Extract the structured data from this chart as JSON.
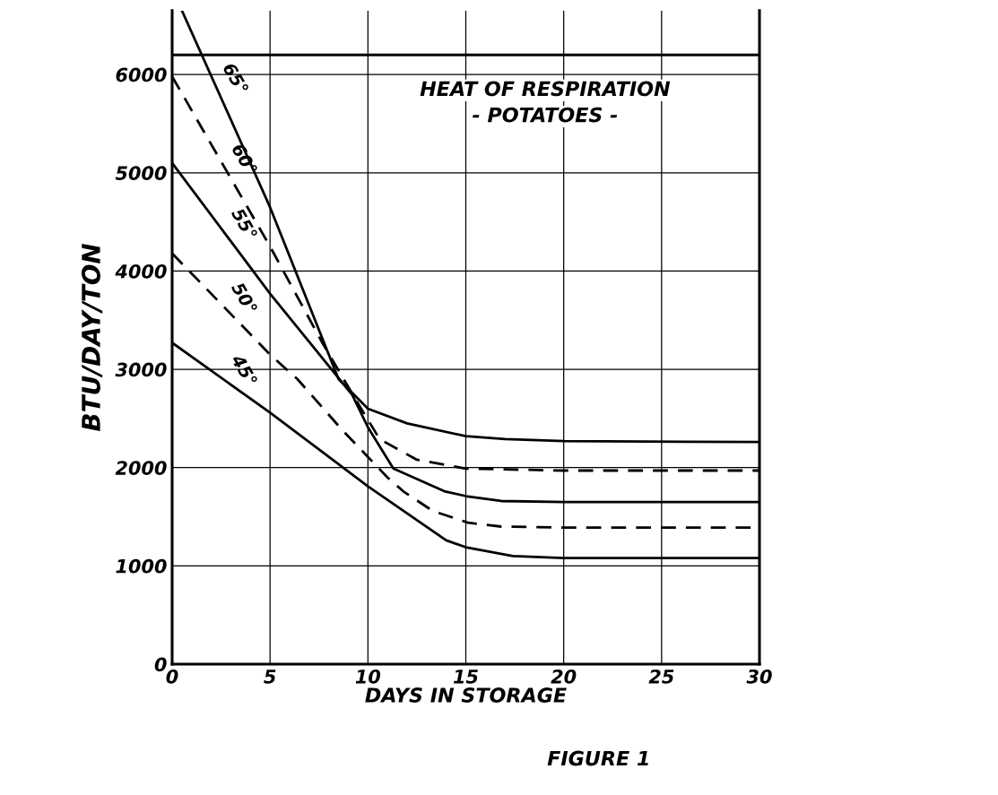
{
  "chart_data": {
    "type": "line",
    "title": "HEAT OF RESPIRATION",
    "subtitle": "- POTATOES -",
    "xlabel": "DAYS IN STORAGE",
    "ylabel": "BTU/DAY/TON",
    "xlim": [
      0,
      30
    ],
    "ylim": [
      0,
      6650
    ],
    "xticks": [
      0,
      5,
      10,
      15,
      20,
      25,
      30
    ],
    "yticks": [
      0,
      1000,
      2000,
      3000,
      4000,
      5000,
      6000
    ],
    "grid": true,
    "marker": "none",
    "series": [
      {
        "name": "65°",
        "color": "#000000",
        "line_style": "solid",
        "x": [
          0.5,
          5,
          8.5,
          10,
          12,
          15,
          17,
          20,
          30
        ],
        "values": [
          6650,
          4650,
          2900,
          2600,
          2450,
          2320,
          2290,
          2270,
          2260
        ]
      },
      {
        "name": "60°",
        "color": "#000000",
        "line_style": "dashed",
        "x": [
          0,
          5,
          7.7,
          9.5,
          10.6,
          12.5,
          15,
          20,
          30
        ],
        "values": [
          5980,
          4250,
          3260,
          2650,
          2290,
          2080,
          1990,
          1970,
          1970
        ]
      },
      {
        "name": "55°",
        "color": "#000000",
        "line_style": "solid",
        "x": [
          0,
          5,
          9.2,
          10,
          11.3,
          13.9,
          15,
          16.8,
          20,
          30
        ],
        "values": [
          5100,
          3770,
          2740,
          2410,
          1990,
          1760,
          1710,
          1660,
          1650,
          1650
        ]
      },
      {
        "name": "50°",
        "color": "#000000",
        "line_style": "dashed",
        "x": [
          0,
          5,
          6.4,
          8.7,
          11,
          11.8,
          13.3,
          15.1,
          16.8,
          20,
          30
        ],
        "values": [
          4180,
          3150,
          2900,
          2380,
          1900,
          1760,
          1560,
          1440,
          1400,
          1390,
          1390
        ]
      },
      {
        "name": "45°",
        "color": "#000000",
        "line_style": "solid",
        "x": [
          0,
          5,
          10,
          14,
          15,
          17.4,
          20,
          30
        ],
        "values": [
          3270,
          2560,
          1810,
          1260,
          1190,
          1100,
          1080,
          1080
        ]
      }
    ],
    "ref_lines": [
      {
        "axis": "y",
        "value": 6200,
        "color": "#000000"
      }
    ],
    "annotations": [
      "FIGURE 1"
    ]
  }
}
